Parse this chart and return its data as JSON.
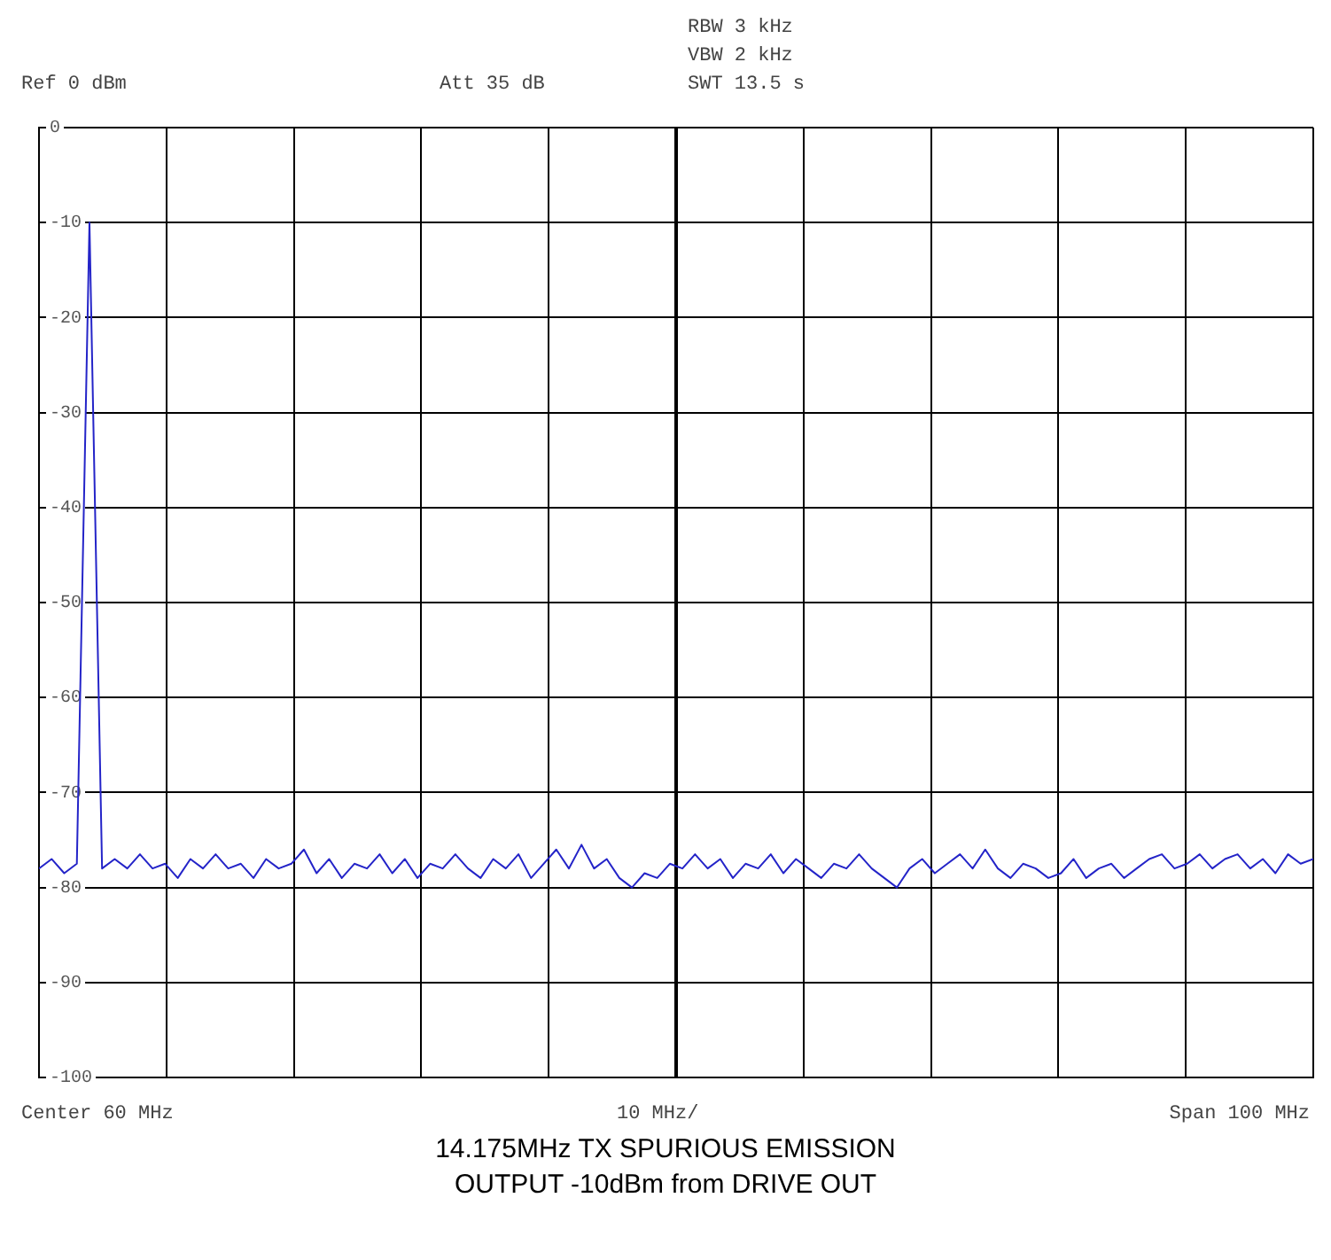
{
  "chart_data": {
    "type": "line",
    "title": "14.175MHz TX SPURIOUS EMISSION",
    "subtitle": "OUTPUT -10dBm from DRIVE OUT",
    "annotations": [
      "Ref 0 dBm",
      "Att 35 dB",
      "RBW 3 kHz",
      "VBW 2 kHz",
      "SWT 13.5 s",
      "Center 60 MHz",
      "10 MHz/",
      "Span 100 MHz"
    ],
    "categories": [
      null,
      null,
      null,
      null,
      null,
      null,
      null,
      null,
      null,
      null,
      null,
      null,
      null,
      null,
      null,
      null,
      null,
      null,
      null,
      null,
      null,
      null,
      null,
      null,
      null,
      null,
      null,
      null,
      null,
      null,
      null,
      null,
      null,
      null,
      null,
      null,
      null,
      null,
      null,
      null,
      null,
      null,
      null,
      null,
      null,
      null,
      null,
      null,
      null,
      null,
      null,
      null,
      null,
      null,
      null,
      null,
      null,
      null,
      null,
      null,
      null,
      null,
      null,
      null,
      null,
      null,
      null,
      null,
      null,
      null,
      null,
      null,
      null,
      null,
      null,
      null,
      null,
      null,
      null,
      null,
      null,
      null,
      null,
      null,
      null,
      null,
      null,
      null,
      null,
      null,
      null,
      null,
      null,
      null,
      null,
      null,
      null,
      null,
      null,
      null,
      null,
      null
    ],
    "series": [
      {
        "color": "#2424c8",
        "values": [
          -78,
          -77,
          -78.5,
          -77.5,
          -10,
          -78,
          -77,
          -78,
          -76.5,
          -78,
          -77.5,
          -79,
          -77,
          -78,
          -76.5,
          -78,
          -77.5,
          -79,
          -77,
          -78,
          -77.5,
          -76,
          -78.5,
          -77,
          -79,
          -77.5,
          -78,
          -76.5,
          -78.5,
          -77,
          -79,
          -77.5,
          -78,
          -76.5,
          -78,
          -79,
          -77,
          -78,
          -76.5,
          -79,
          -77.5,
          -76,
          -78,
          -75.5,
          -78,
          -77,
          -79,
          -80,
          -78.5,
          -79,
          -77.5,
          -78,
          -76.5,
          -78,
          -77,
          -79,
          -77.5,
          -78,
          -76.5,
          -78.5,
          -77,
          -78,
          -79,
          -77.5,
          -78,
          -76.5,
          -78,
          -79,
          -80,
          -78,
          -77,
          -78.5,
          -77.5,
          -76.5,
          -78,
          -76,
          -78,
          -79,
          -77.5,
          -78,
          -79,
          -78.5,
          -77,
          -79,
          -78,
          -77.5,
          -79,
          -78,
          -77,
          -76.5,
          -78,
          -77.5,
          -76.5,
          -78,
          -77,
          -76.5,
          -78,
          -77,
          -78.5,
          -76.5,
          -77.5,
          -77
        ]
      }
    ],
    "ylim": [
      -100,
      0
    ],
    "yticks": [
      -100,
      -90,
      -80,
      -70,
      -60,
      -50,
      -40,
      -30,
      -20,
      -10,
      0
    ],
    "grid": true,
    "tick_labels": "y",
    "marker": "none",
    "line_style": "solid"
  }
}
